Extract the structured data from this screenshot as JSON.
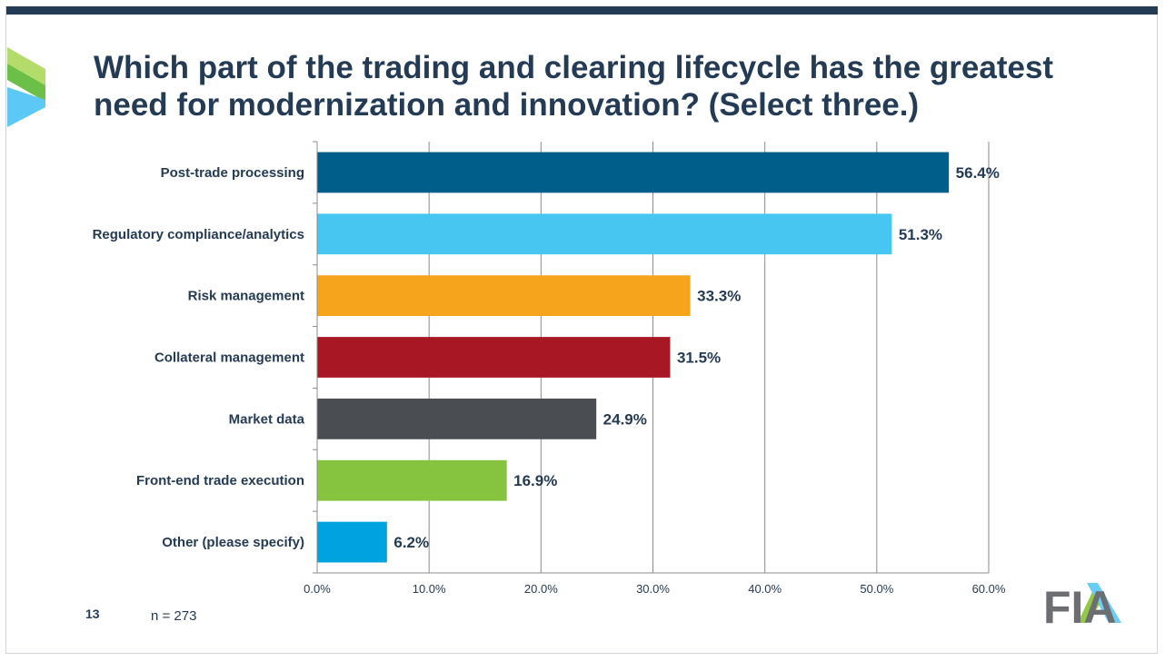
{
  "title": "Which part of the trading and clearing lifecycle has the greatest need for modernization and innovation? (Select three.)",
  "slide_number": "13",
  "sample_size": "n = 273",
  "logo_text": "FIA",
  "colors": {
    "title": "#243b55",
    "top_bar": "#243b55",
    "grid": "#8c8c8c",
    "logo_green": "#8cc63f",
    "logo_blue": "#5bc8f5"
  },
  "chart_data": {
    "type": "bar",
    "orientation": "horizontal",
    "categories": [
      "Post-trade processing",
      "Regulatory compliance/analytics",
      "Risk management",
      "Collateral management",
      "Market data",
      "Front-end trade execution",
      "Other (please specify)"
    ],
    "values": [
      56.4,
      51.3,
      33.3,
      31.5,
      24.9,
      16.9,
      6.2
    ],
    "value_labels": [
      "56.4%",
      "51.3%",
      "33.3%",
      "31.5%",
      "24.9%",
      "16.9%",
      "6.2%"
    ],
    "bar_colors": [
      "#005e8a",
      "#47c6f2",
      "#f6a41c",
      "#a81824",
      "#4a4d52",
      "#86c440",
      "#00a3e0"
    ],
    "xlim": [
      0,
      60
    ],
    "x_ticks": [
      0,
      10,
      20,
      30,
      40,
      50,
      60
    ],
    "x_tick_labels": [
      "0.0%",
      "10.0%",
      "20.0%",
      "30.0%",
      "40.0%",
      "50.0%",
      "60.0%"
    ],
    "grid": true,
    "xlabel": "",
    "ylabel": ""
  }
}
